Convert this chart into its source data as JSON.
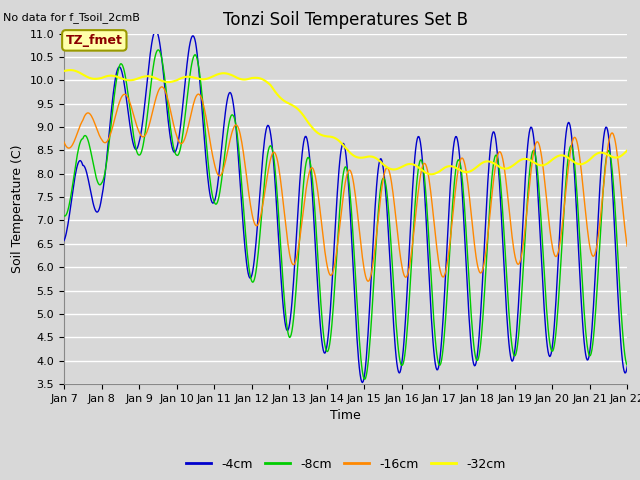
{
  "title": "Tonzi Soil Temperatures Set B",
  "xlabel": "Time",
  "ylabel": "Soil Temperature (C)",
  "no_data_text": "No data for f_Tsoil_2cmB",
  "annotation_text": "TZ_fmet",
  "ylim": [
    3.5,
    11.0
  ],
  "colors": {
    "-4cm": "#0000cc",
    "-8cm": "#00cc00",
    "-16cm": "#ff8800",
    "-32cm": "#ffff00"
  },
  "legend_labels": [
    "-4cm",
    "-8cm",
    "-16cm",
    "-32cm"
  ],
  "background_color": "#d8d8d8",
  "plot_bg_color": "#d8d8d8",
  "grid_color": "#ffffff",
  "n_points": 720,
  "x_start": 7.0,
  "x_end": 22.0,
  "xtick_positions": [
    7,
    8,
    9,
    10,
    11,
    12,
    13,
    14,
    15,
    16,
    17,
    18,
    19,
    20,
    21,
    22
  ],
  "xtick_labels": [
    "Jan 7",
    "Jan 8",
    "Jan 9",
    "Jan 10",
    "Jan 11",
    "Jan 12",
    "Jan 13",
    "Jan 14",
    "Jan 15",
    "Jan 16",
    "Jan 17",
    "Jan 18",
    "Jan 19",
    "Jan 20",
    "Jan 21",
    "Jan 22"
  ],
  "title_fontsize": 12,
  "label_fontsize": 9,
  "tick_fontsize": 8,
  "figsize": [
    6.4,
    4.8
  ],
  "dpi": 100
}
